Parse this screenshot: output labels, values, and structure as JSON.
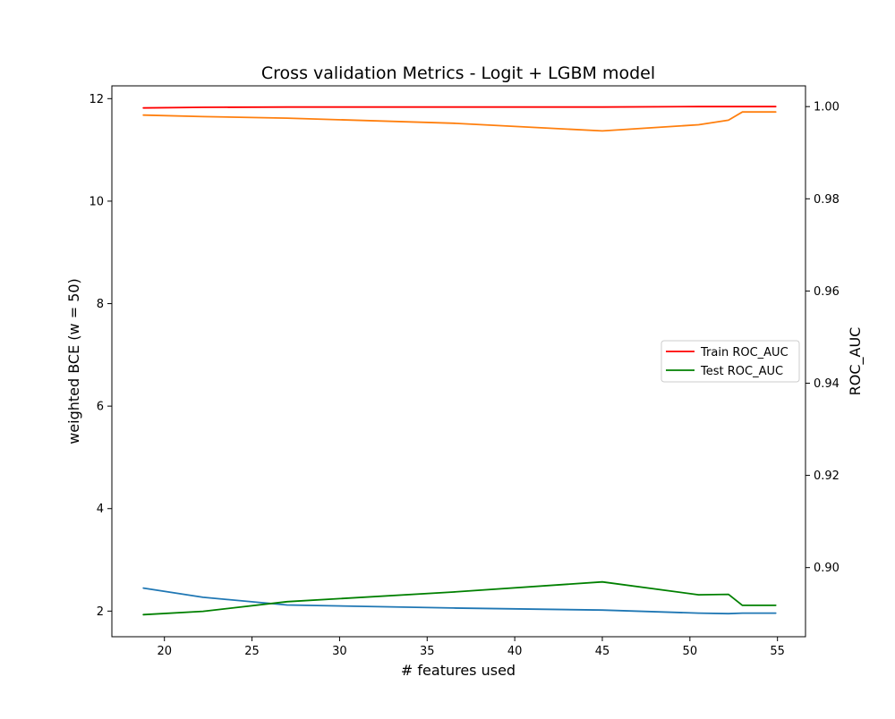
{
  "chart_data": {
    "type": "line",
    "title": "Cross validation Metrics - Logit + LGBM model",
    "xlabel": "# features used",
    "ylabel_left": "weighted BCE (w = 50)",
    "ylabel_right": "ROC_AUC",
    "xlim": [
      17.0,
      56.6
    ],
    "ylim_left": [
      1.5,
      12.25
    ],
    "ylim_right": [
      0.885,
      1.0045
    ],
    "xticks": [
      20,
      25,
      30,
      35,
      40,
      45,
      50,
      55
    ],
    "xtick_labels": [
      "20",
      "25",
      "30",
      "35",
      "40",
      "45",
      "50",
      "55"
    ],
    "yticks_left": [
      2,
      4,
      6,
      8,
      10,
      12
    ],
    "ytick_labels_left": [
      "2",
      "4",
      "6",
      "8",
      "10",
      "12"
    ],
    "yticks_right": [
      0.9,
      0.92,
      0.94,
      0.96,
      0.98,
      1.0
    ],
    "ytick_labels_right": [
      "0.90",
      "0.92",
      "0.94",
      "0.96",
      "0.98",
      "1.00"
    ],
    "legend_position": "center-right",
    "series": [
      {
        "axis": "left",
        "color": "#1f77b4",
        "x": [
          18.8,
          22.2,
          27.0,
          36.5,
          45.0,
          50.5,
          52.2,
          53.0,
          54.9
        ],
        "y": [
          2.45,
          2.27,
          2.12,
          2.06,
          2.02,
          1.96,
          1.95,
          1.96,
          1.96
        ]
      },
      {
        "axis": "left",
        "color": "#ff7f0e",
        "x": [
          18.8,
          22.2,
          27.0,
          36.5,
          45.0,
          50.5,
          52.2,
          53.0,
          54.9
        ],
        "y": [
          11.68,
          11.65,
          11.62,
          11.52,
          11.37,
          11.49,
          11.58,
          11.74,
          11.74
        ]
      },
      {
        "name": "Train ROC_AUC",
        "axis": "right",
        "color": "#ff0000",
        "x": [
          18.8,
          22.2,
          27.0,
          36.5,
          45.0,
          50.5,
          52.2,
          53.0,
          54.9
        ],
        "y": [
          0.9997,
          0.99985,
          0.9999,
          0.9999,
          0.9999,
          1.0,
          1.0,
          1.0,
          1.0
        ]
      },
      {
        "name": "Test ROC_AUC",
        "axis": "right",
        "color": "#008000",
        "x": [
          18.8,
          22.2,
          27.0,
          36.5,
          45.0,
          50.5,
          52.2,
          53.0,
          54.9
        ],
        "y": [
          0.8898,
          0.8905,
          0.8926,
          0.8947,
          0.8969,
          0.8941,
          0.8942,
          0.8918,
          0.8918
        ]
      }
    ],
    "legend": [
      {
        "label": "Train ROC_AUC",
        "color": "#ff0000"
      },
      {
        "label": "Test ROC_AUC",
        "color": "#008000"
      }
    ]
  }
}
